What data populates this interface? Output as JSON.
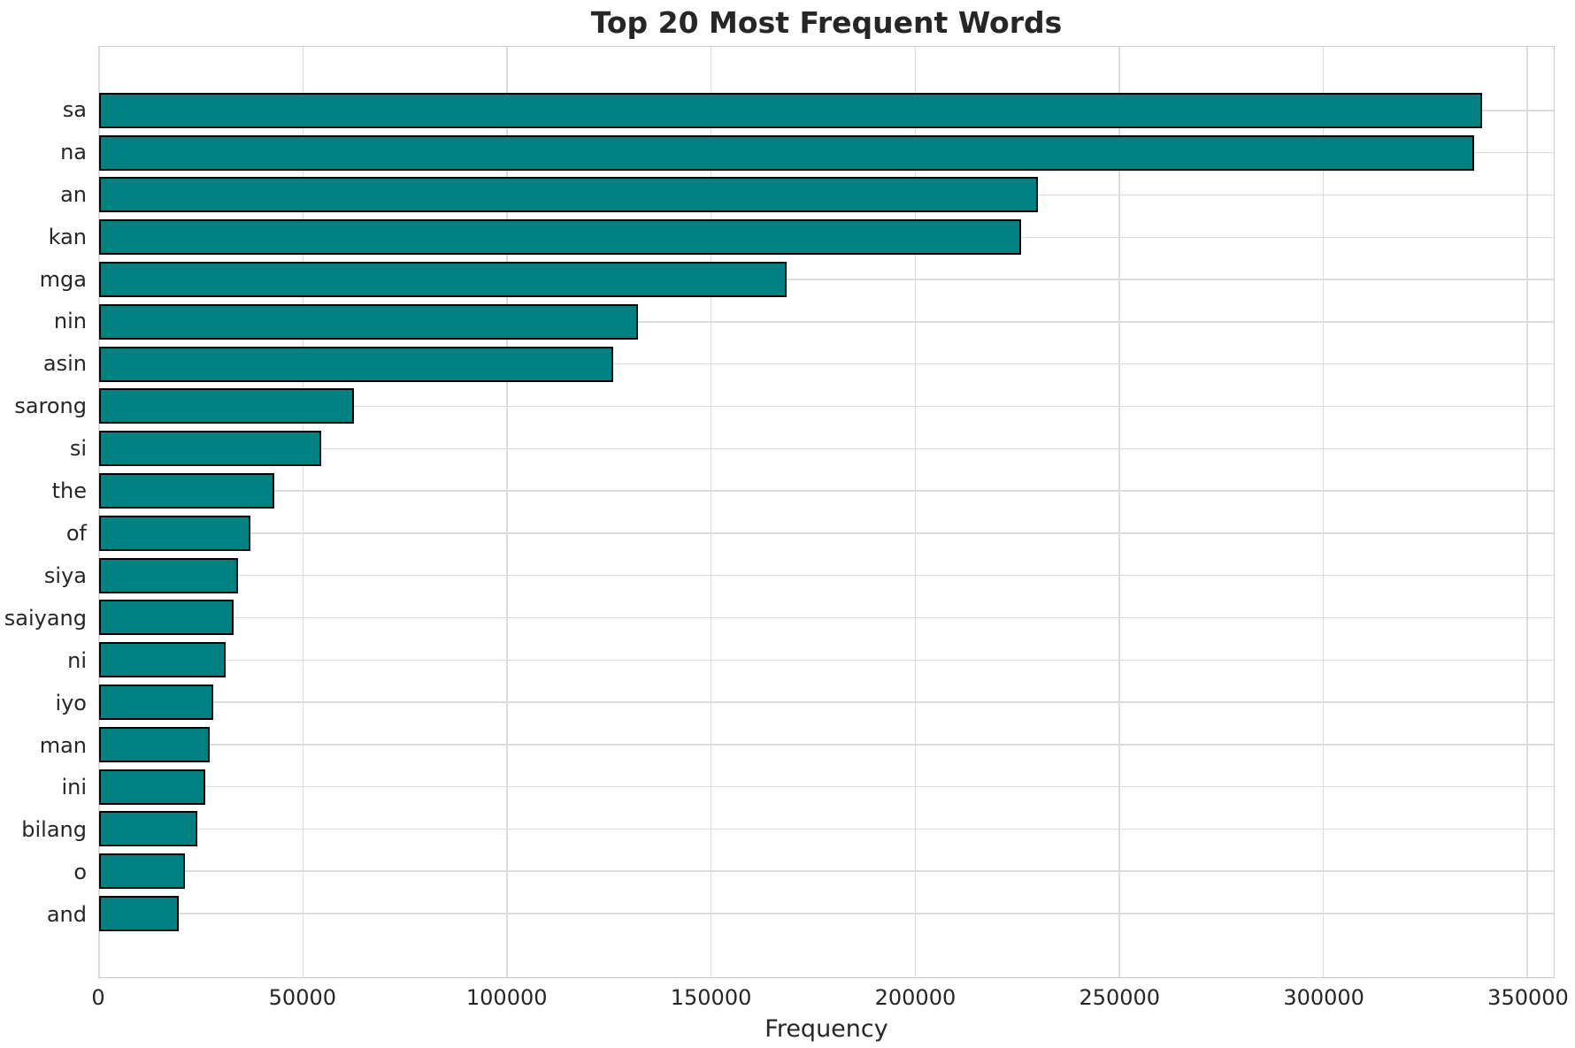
{
  "chart_data": {
    "type": "bar",
    "orientation": "horizontal",
    "title": "Top 20 Most Frequent Words",
    "xlabel": "Frequency",
    "ylabel": "",
    "categories": [
      "sa",
      "na",
      "an",
      "kan",
      "mga",
      "nin",
      "asin",
      "sarong",
      "si",
      "the",
      "of",
      "siya",
      "saiyang",
      "ni",
      "iyo",
      "man",
      "ini",
      "bilang",
      "o",
      "and"
    ],
    "values": [
      339000,
      337000,
      230000,
      226000,
      168500,
      132000,
      126000,
      62500,
      54500,
      43000,
      37000,
      34000,
      33000,
      31000,
      28000,
      27000,
      26000,
      24000,
      21000,
      19500
    ],
    "x_ticks": [
      0,
      50000,
      100000,
      150000,
      200000,
      250000,
      300000,
      350000
    ],
    "x_tick_labels": [
      "0",
      "50000",
      "100000",
      "150000",
      "200000",
      "250000",
      "300000",
      "350000"
    ],
    "xlim": [
      0,
      356500
    ],
    "grid": true,
    "legend": "none",
    "colors": {
      "bar_fill": "#008080",
      "bar_edge": "#000000",
      "grid": "#dcdcdc",
      "spine": "#cccccc",
      "text": "#262626",
      "background": "#ffffff"
    }
  }
}
